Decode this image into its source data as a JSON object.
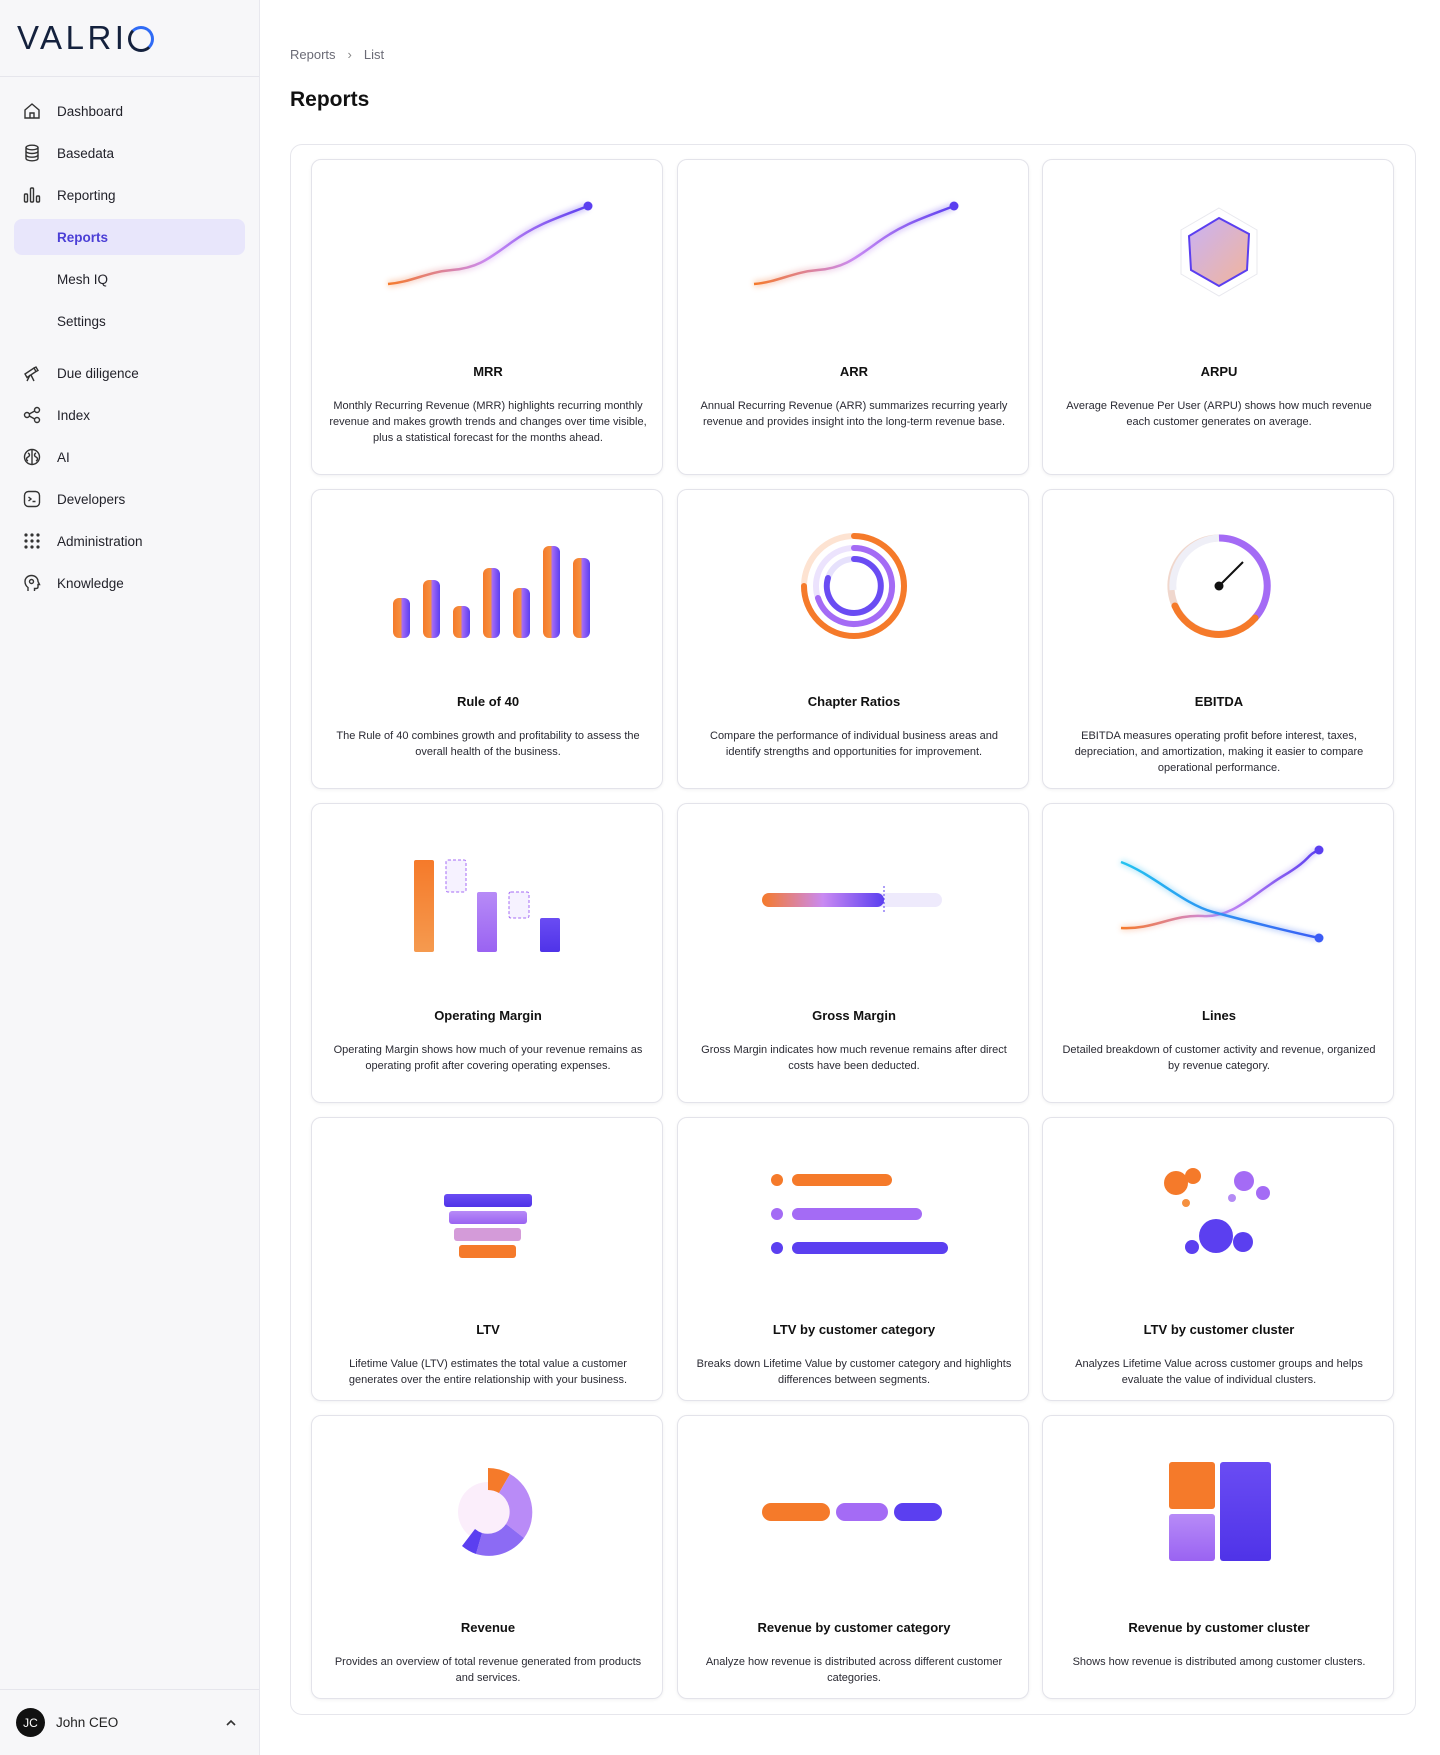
{
  "brand": {
    "name_part1": "VAL",
    "name_part2": "RI",
    "name_part3": "O"
  },
  "sidebar": {
    "items": [
      {
        "label": "Dashboard",
        "icon": "home-icon"
      },
      {
        "label": "Basedata",
        "icon": "database-icon"
      },
      {
        "label": "Reporting",
        "icon": "bar-chart-icon"
      },
      {
        "label": "Reports",
        "sub": true,
        "active": true
      },
      {
        "label": "Mesh IQ",
        "sub": true
      },
      {
        "label": "Settings",
        "sub": true
      },
      {
        "label": "Due diligence",
        "icon": "telescope-icon"
      },
      {
        "label": "Index",
        "icon": "network-icon"
      },
      {
        "label": "AI",
        "icon": "brain-icon"
      },
      {
        "label": "Developers",
        "icon": "terminal-icon"
      },
      {
        "label": "Administration",
        "icon": "grid-dots-icon"
      },
      {
        "label": "Knowledge",
        "icon": "head-icon"
      }
    ]
  },
  "user": {
    "initials": "JC",
    "name": "John CEO"
  },
  "breadcrumb": {
    "root": "Reports",
    "current": "List"
  },
  "page": {
    "title": "Reports"
  },
  "colors": {
    "accent": "#4b3fd6",
    "orange": "#f57a2a",
    "purple": "#a46bf5",
    "indigo": "#5b3ff0"
  },
  "reports": [
    {
      "title": "MRR",
      "desc": "Monthly Recurring Revenue (MRR) highlights recurring monthly revenue and makes growth trends and changes over time visible, plus a statistical forecast for the months ahead.",
      "icon": "line-chart-icon"
    },
    {
      "title": "ARR",
      "desc": "Annual Recurring Revenue (ARR) summarizes recurring yearly revenue and provides insight into the long-term revenue base.",
      "icon": "line-chart-icon"
    },
    {
      "title": "ARPU",
      "desc": "Average Revenue Per User (ARPU) shows how much revenue each customer generates on average.",
      "icon": "hexagon-icon"
    },
    {
      "title": "Rule of 40",
      "desc": "The Rule of 40 combines growth and profitability to assess the overall health of the business.",
      "icon": "bars-icon"
    },
    {
      "title": "Chapter Ratios",
      "desc": "Compare the performance of individual business areas and identify strengths and opportunities for improvement.",
      "icon": "rings-icon"
    },
    {
      "title": "EBITDA",
      "desc": "EBITDA measures operating profit before interest, taxes, depreciation, and amortization, making it easier to compare operational performance.",
      "icon": "gauge-icon"
    },
    {
      "title": "Operating Margin",
      "desc": "Operating Margin shows how much of your revenue remains as operating profit after covering operating expenses.",
      "icon": "waterfall-icon"
    },
    {
      "title": "Gross Margin",
      "desc": "Gross Margin indicates how much revenue remains after direct costs have been deducted.",
      "icon": "progress-icon"
    },
    {
      "title": "Lines",
      "desc": "Detailed breakdown of customer activity and revenue, organized by revenue category.",
      "icon": "crossing-lines-icon"
    },
    {
      "title": "LTV",
      "desc": "Lifetime Value (LTV) estimates the total value a customer generates over the entire relationship with your business.",
      "icon": "funnel-icon"
    },
    {
      "title": "LTV by customer category",
      "desc": "Breaks down Lifetime Value by customer category and highlights differences between segments.",
      "icon": "list-bars-icon"
    },
    {
      "title": "LTV by customer cluster",
      "desc": "Analyzes Lifetime Value across customer groups and helps evaluate the value of individual clusters.",
      "icon": "bubbles-icon"
    },
    {
      "title": "Revenue",
      "desc": "Provides an overview of total revenue generated from products and services.",
      "icon": "donut-icon"
    },
    {
      "title": "Revenue by customer category",
      "desc": "Analyze how revenue is distributed across different customer categories.",
      "icon": "segments-icon"
    },
    {
      "title": "Revenue by customer cluster",
      "desc": "Shows how revenue is distributed among customer clusters.",
      "icon": "treemap-icon"
    }
  ]
}
